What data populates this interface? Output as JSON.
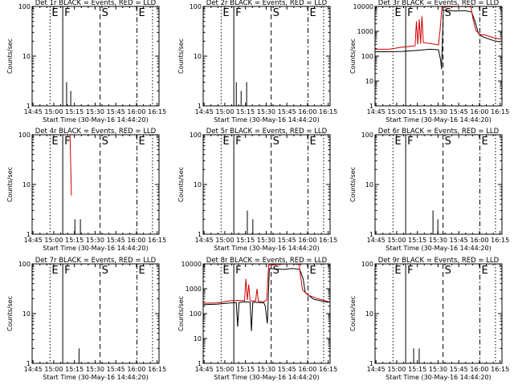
{
  "chart_data": {
    "type": "line",
    "y_scale": "log",
    "ylim": [
      1,
      10000
    ],
    "x_ticks": [
      "14:45",
      "15:00",
      "15:15",
      "15:30",
      "15:45",
      "16:00",
      "16:15"
    ],
    "xlabel": "Start Time (30-May-16 14:44:20)",
    "ylabel": "Counts/sec",
    "legend": "BLACK = Events, RED = LLD",
    "markers": [
      {
        "label": "E",
        "t": 13.0,
        "style": "dotted"
      },
      {
        "label": "F",
        "t": 22.2,
        "style": "solid"
      },
      {
        "label": "S",
        "t": 49.3,
        "style": "dashed"
      },
      {
        "label": "E",
        "t": 76.0,
        "style": "dashdot"
      },
      {
        "label": "",
        "t": 87.3,
        "style": "dotted"
      }
    ],
    "panels": [
      {
        "title": "Det 1r BLACK = Events, RED = LLD",
        "ymax_decade": 2,
        "series": [
          {
            "name": "Events",
            "color": "#000000",
            "points": [
              [
                25.0,
                3.0
              ],
              [
                26.5,
                1.0
              ],
              [
                28.0,
                2.0
              ]
            ]
          }
        ]
      },
      {
        "title": "Det 2r BLACK = Events, RED = LLD",
        "ymax_decade": 2,
        "series": [
          {
            "name": "Events",
            "color": "#000000",
            "points": [
              [
                24.0,
                3.0
              ],
              [
                26.0,
                1.0
              ],
              [
                27.5,
                2.0
              ],
              [
                29.5,
                1.0
              ],
              [
                31.5,
                3.0
              ]
            ]
          }
        ]
      },
      {
        "title": "Det 3r BLACK = Events, RED = LLD",
        "ymax_decade": 4,
        "series": [
          {
            "name": "Events",
            "color": "#000000",
            "points": [
              [
                0,
                150
              ],
              [
                10,
                150
              ],
              [
                20,
                155
              ],
              [
                30,
                170
              ],
              [
                40,
                190
              ],
              [
                46,
                180
              ],
              [
                47.5,
                70
              ],
              [
                48.2,
                30
              ],
              [
                49.5,
                7000
              ],
              [
                58,
                6500
              ],
              [
                65,
                6800
              ],
              [
                70,
                6000
              ],
              [
                72.5,
                2500
              ],
              [
                75,
                800
              ],
              [
                78,
                600
              ],
              [
                86,
                420
              ],
              [
                91,
                370
              ]
            ]
          },
          {
            "name": "LLD",
            "color": "#d00000",
            "points": [
              [
                0,
                190
              ],
              [
                10,
                190
              ],
              [
                20,
                230
              ],
              [
                29,
                260
              ],
              [
                30,
                2500
              ],
              [
                31,
                300
              ],
              [
                32,
                3000
              ],
              [
                33,
                320
              ],
              [
                34,
                4000
              ],
              [
                35,
                350
              ],
              [
                40,
                320
              ],
              [
                46,
                280
              ],
              [
                47,
                900
              ],
              [
                48.5,
                9500
              ],
              [
                58,
                9800
              ],
              [
                65,
                10000
              ],
              [
                69.5,
                9600
              ],
              [
                71,
                3200
              ],
              [
                73,
                1100
              ],
              [
                76,
                750
              ],
              [
                80,
                700
              ],
              [
                86,
                550
              ],
              [
                91,
                480
              ]
            ]
          }
        ]
      },
      {
        "title": "Det 4r BLACK = Events, RED = LLD",
        "ymax_decade": 2,
        "series": [
          {
            "name": "LLD",
            "color": "#d00000",
            "points": [
              [
                27.5,
                100
              ],
              [
                28.5,
                6
              ]
            ]
          },
          {
            "name": "Events",
            "color": "#000000",
            "points": [
              [
                31.0,
                2.0
              ],
              [
                32.5,
                1.0
              ],
              [
                35.0,
                2.0
              ]
            ]
          }
        ]
      },
      {
        "title": "Det 5r BLACK = Events, RED = LLD",
        "ymax_decade": 2,
        "series": [
          {
            "name": "Events",
            "color": "#000000",
            "points": [
              [
                32.0,
                3.0
              ],
              [
                33.5,
                1.0
              ],
              [
                36.0,
                2.0
              ]
            ]
          }
        ]
      },
      {
        "title": "Det 6r BLACK = Events, RED = LLD",
        "ymax_decade": 2,
        "series": [
          {
            "name": "Events",
            "color": "#000000",
            "points": [
              [
                42.0,
                3.0
              ],
              [
                43.5,
                1.0
              ],
              [
                45.5,
                2.0
              ]
            ]
          }
        ]
      },
      {
        "title": "Det 7r BLACK = Events, RED = LLD",
        "ymax_decade": 2,
        "series": [
          {
            "name": "Events",
            "color": "#000000",
            "points": [
              [
                34.0,
                2.0
              ],
              [
                35.0,
                1.0
              ]
            ]
          }
        ]
      },
      {
        "title": "Det 8r BLACK = Events, RED = LLD",
        "ymax_decade": 4,
        "series": [
          {
            "name": "Events",
            "color": "#000000",
            "points": [
              [
                0,
                230
              ],
              [
                10,
                240
              ],
              [
                20,
                270
              ],
              [
                24,
                280
              ],
              [
                25,
                30
              ],
              [
                26,
                280
              ],
              [
                30,
                300
              ],
              [
                34,
                290
              ],
              [
                35,
                20
              ],
              [
                36,
                290
              ],
              [
                40,
                280
              ],
              [
                44,
                270
              ],
              [
                45,
                200
              ],
              [
                46.5,
                40
              ],
              [
                48,
                6500
              ],
              [
                58,
                6000
              ],
              [
                65,
                6500
              ],
              [
                70,
                6000
              ],
              [
                72.5,
                2500
              ],
              [
                74,
                700
              ],
              [
                80,
                380
              ],
              [
                91,
                280
              ]
            ]
          },
          {
            "name": "LLD",
            "color": "#d00000",
            "points": [
              [
                0,
                260
              ],
              [
                10,
                270
              ],
              [
                20,
                330
              ],
              [
                25,
                340
              ],
              [
                30,
                330
              ],
              [
                31,
                2500
              ],
              [
                32,
                350
              ],
              [
                33,
                1500
              ],
              [
                34,
                330
              ],
              [
                38,
                320
              ],
              [
                39,
                1000
              ],
              [
                40,
                310
              ],
              [
                44,
                300
              ],
              [
                46,
                350
              ],
              [
                47.5,
                9000
              ],
              [
                58,
                9800
              ],
              [
                65,
                10000
              ],
              [
                69.5,
                9500
              ],
              [
                70.5,
                3500
              ],
              [
                72,
                900
              ],
              [
                76,
                550
              ],
              [
                82,
                420
              ],
              [
                91,
                300
              ]
            ]
          }
        ]
      },
      {
        "title": "Det 9r BLACK = Events, RED = LLD",
        "ymax_decade": 2,
        "series": [
          {
            "name": "Events",
            "color": "#000000",
            "points": [
              [
                28.0,
                2.0
              ],
              [
                30.0,
                1.0
              ],
              [
                32.0,
                2.0
              ],
              [
                34.0,
                1.0
              ]
            ]
          }
        ]
      }
    ]
  }
}
